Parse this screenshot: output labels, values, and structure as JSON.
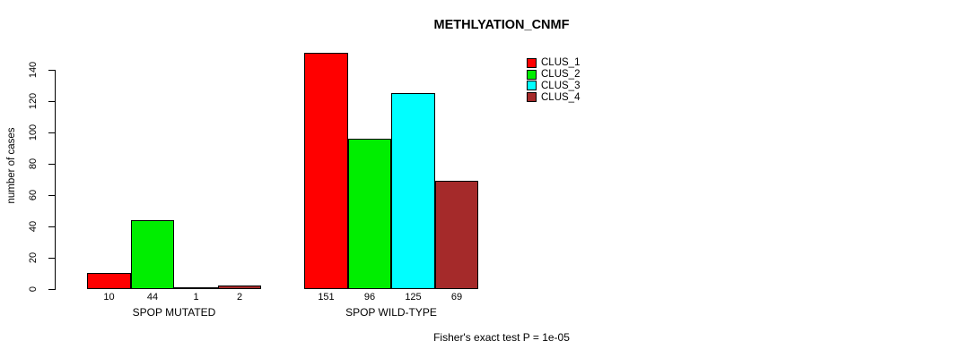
{
  "chart_data": {
    "type": "bar",
    "title": "METHLYATION_CNMF",
    "ylabel": "number of cases",
    "xlabel": "",
    "annotation": "Fisher's exact test P = 1e-05",
    "ylim": [
      0,
      140
    ],
    "yticks": [
      0,
      20,
      40,
      60,
      80,
      100,
      120,
      140
    ],
    "grid": false,
    "legend_position": "top-right",
    "categories": [
      "SPOP MUTATED",
      "SPOP WILD-TYPE"
    ],
    "series": [
      {
        "name": "CLUS_1",
        "color": "#ff0000",
        "values": [
          10,
          151
        ]
      },
      {
        "name": "CLUS_2",
        "color": "#00ee00",
        "values": [
          44,
          96
        ]
      },
      {
        "name": "CLUS_3",
        "color": "#00ffff",
        "values": [
          1,
          125
        ]
      },
      {
        "name": "CLUS_4",
        "color": "#a52a2a",
        "values": [
          2,
          69
        ]
      }
    ],
    "bar_value_labels": true
  }
}
